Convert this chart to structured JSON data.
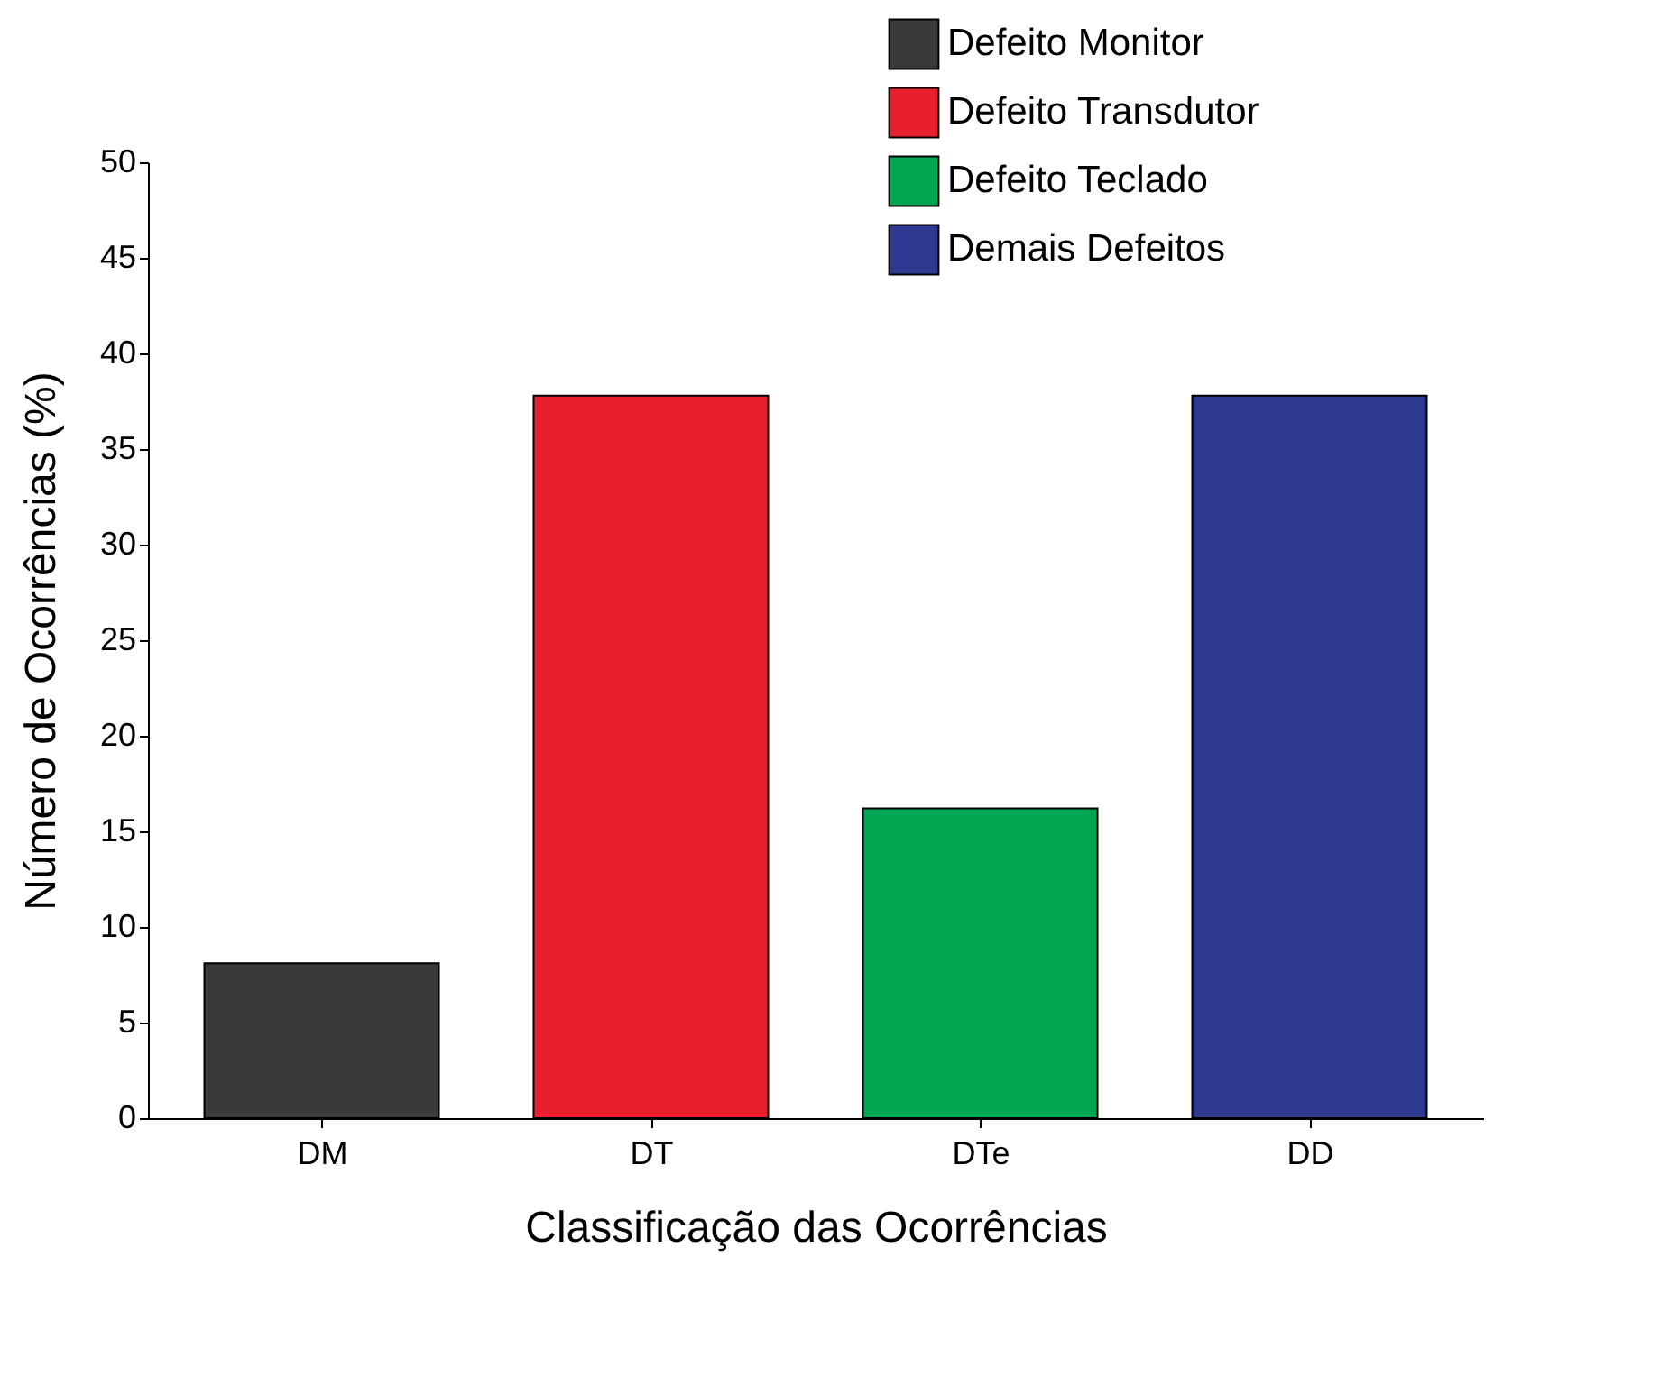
{
  "chart_data": {
    "type": "bar",
    "xlabel": "Classificação das Ocorrências",
    "ylabel": "Número de Ocorrências (%)",
    "categories": [
      "DM",
      "DT",
      "DTe",
      "DD"
    ],
    "series": [
      {
        "name": "Defeito Monitor",
        "color": "#3a3a3a",
        "values": [
          8.1,
          null,
          null,
          null
        ]
      },
      {
        "name": "Defeito Transdutor",
        "color": "#e8202e",
        "values": [
          null,
          37.8,
          null,
          null
        ]
      },
      {
        "name": "Defeito Teclado",
        "color": "#00a651",
        "values": [
          null,
          null,
          16.2,
          null
        ]
      },
      {
        "name": "Demais Defeitos",
        "color": "#2e3a92",
        "values": [
          null,
          null,
          null,
          37.8
        ]
      }
    ],
    "ylim": [
      0,
      50
    ],
    "yticks": [
      0,
      5,
      10,
      15,
      20,
      25,
      30,
      35,
      40,
      45,
      50
    ],
    "grid": false,
    "legend": "top right"
  }
}
